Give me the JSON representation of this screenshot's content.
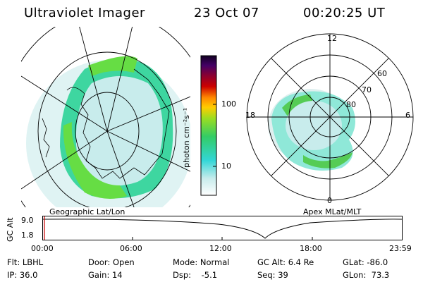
{
  "header": {
    "title": "Ultraviolet Imager",
    "date": "23 Oct 07",
    "time": "00:20:25 UT"
  },
  "left_panel": {
    "label": "Geographic Lat/Lon"
  },
  "right_panel": {
    "label": "Apex MLat/MLT",
    "mlt_labels": {
      "top": "12",
      "right": "6",
      "bottom": "0",
      "left": "18"
    },
    "lat_labels": [
      "60",
      "70",
      "80"
    ]
  },
  "colorbar": {
    "unit": "photon cm⁻²s⁻¹",
    "ticks": [
      "100",
      "10"
    ]
  },
  "altitude": {
    "axis_label": "GC Alt",
    "ticks": [
      "9.0",
      "1.8"
    ],
    "time_ticks": [
      "00:00",
      "06:00",
      "12:00",
      "18:00",
      "23:59"
    ]
  },
  "info": {
    "row1": [
      "Flt: LBHL",
      "Door: Open",
      "Mode: Normal",
      "GC Alt: 6.4 Re",
      "GLat: -86.0"
    ],
    "row2": [
      "IP: 36.0",
      "Gain: 14",
      "Dsp:    -5.1",
      "Seq: 39",
      "GLon:  73.3"
    ]
  },
  "colors": {
    "aurora_green": "#4cd64c",
    "aurora_cyan": "#33d6d6",
    "pale": "#c8ecec",
    "axis": "#000000",
    "marker": "#cc0000"
  }
}
